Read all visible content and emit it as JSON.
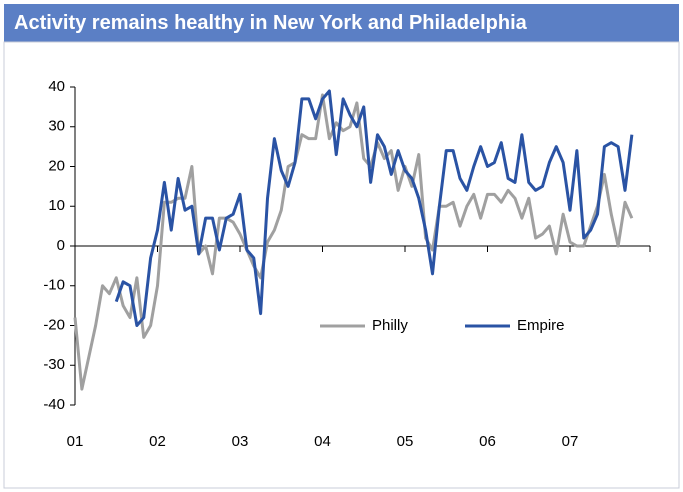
{
  "chart_data": {
    "type": "line",
    "title": "Activity remains healthy in New York and Philadelphia",
    "categories": [
      "01",
      null,
      null,
      null,
      null,
      null,
      null,
      null,
      null,
      null,
      null,
      null,
      "02",
      null,
      null,
      null,
      null,
      null,
      null,
      null,
      null,
      null,
      null,
      null,
      "03",
      null,
      null,
      null,
      null,
      null,
      null,
      null,
      null,
      null,
      null,
      null,
      "04",
      null,
      null,
      null,
      null,
      null,
      null,
      null,
      null,
      null,
      null,
      null,
      "05",
      null,
      null,
      null,
      null,
      null,
      null,
      null,
      null,
      null,
      null,
      null,
      "06",
      null,
      null,
      null,
      null,
      null,
      null,
      null,
      null,
      null,
      null,
      null,
      "07",
      null,
      null,
      null,
      null,
      null,
      null,
      null,
      null,
      null
    ],
    "series": [
      {
        "name": "Philly",
        "color": "#a0a0a0",
        "values": [
          -18,
          -36,
          -28,
          -20,
          -10,
          -12,
          -8,
          -15,
          -18,
          -8,
          -23,
          -20,
          -10,
          11,
          11,
          12,
          12,
          20,
          -2,
          0,
          -7,
          7,
          7,
          6,
          3,
          -1,
          -5,
          -8,
          1,
          4,
          9,
          20,
          21,
          28,
          27,
          27,
          38,
          27,
          31,
          29,
          30,
          36,
          22,
          20,
          26,
          22,
          24,
          14,
          20,
          15,
          23,
          2,
          -1,
          10,
          10,
          11,
          5,
          10,
          13,
          7,
          13,
          13,
          11,
          14,
          12,
          7,
          12,
          2,
          3,
          5,
          -2,
          8,
          1,
          0,
          0,
          5,
          10,
          18,
          8,
          0,
          11,
          7
        ]
      },
      {
        "name": "Empire",
        "color": "#2a53a4",
        "values": [
          null,
          null,
          null,
          null,
          null,
          null,
          -14,
          -9,
          -10,
          -20,
          -18,
          -3,
          4,
          16,
          4,
          17,
          9,
          10,
          -2,
          7,
          7,
          -1,
          7,
          8,
          13,
          -1,
          -3,
          -17,
          12,
          27,
          19,
          15,
          21,
          37,
          37,
          32,
          37,
          39,
          23,
          37,
          33,
          30,
          35,
          16,
          28,
          25,
          18,
          24,
          19,
          17,
          12,
          4,
          -7,
          10,
          24,
          24,
          17,
          14,
          20,
          25,
          20,
          21,
          26,
          17,
          16,
          28,
          16,
          14,
          15,
          21,
          25,
          21,
          9,
          24,
          2,
          4,
          8,
          25,
          26,
          25,
          14,
          28
        ]
      }
    ],
    "ylim": [
      -40,
      40
    ],
    "yticks": [
      -40,
      -30,
      -20,
      -10,
      0,
      10,
      20,
      30,
      40
    ]
  }
}
